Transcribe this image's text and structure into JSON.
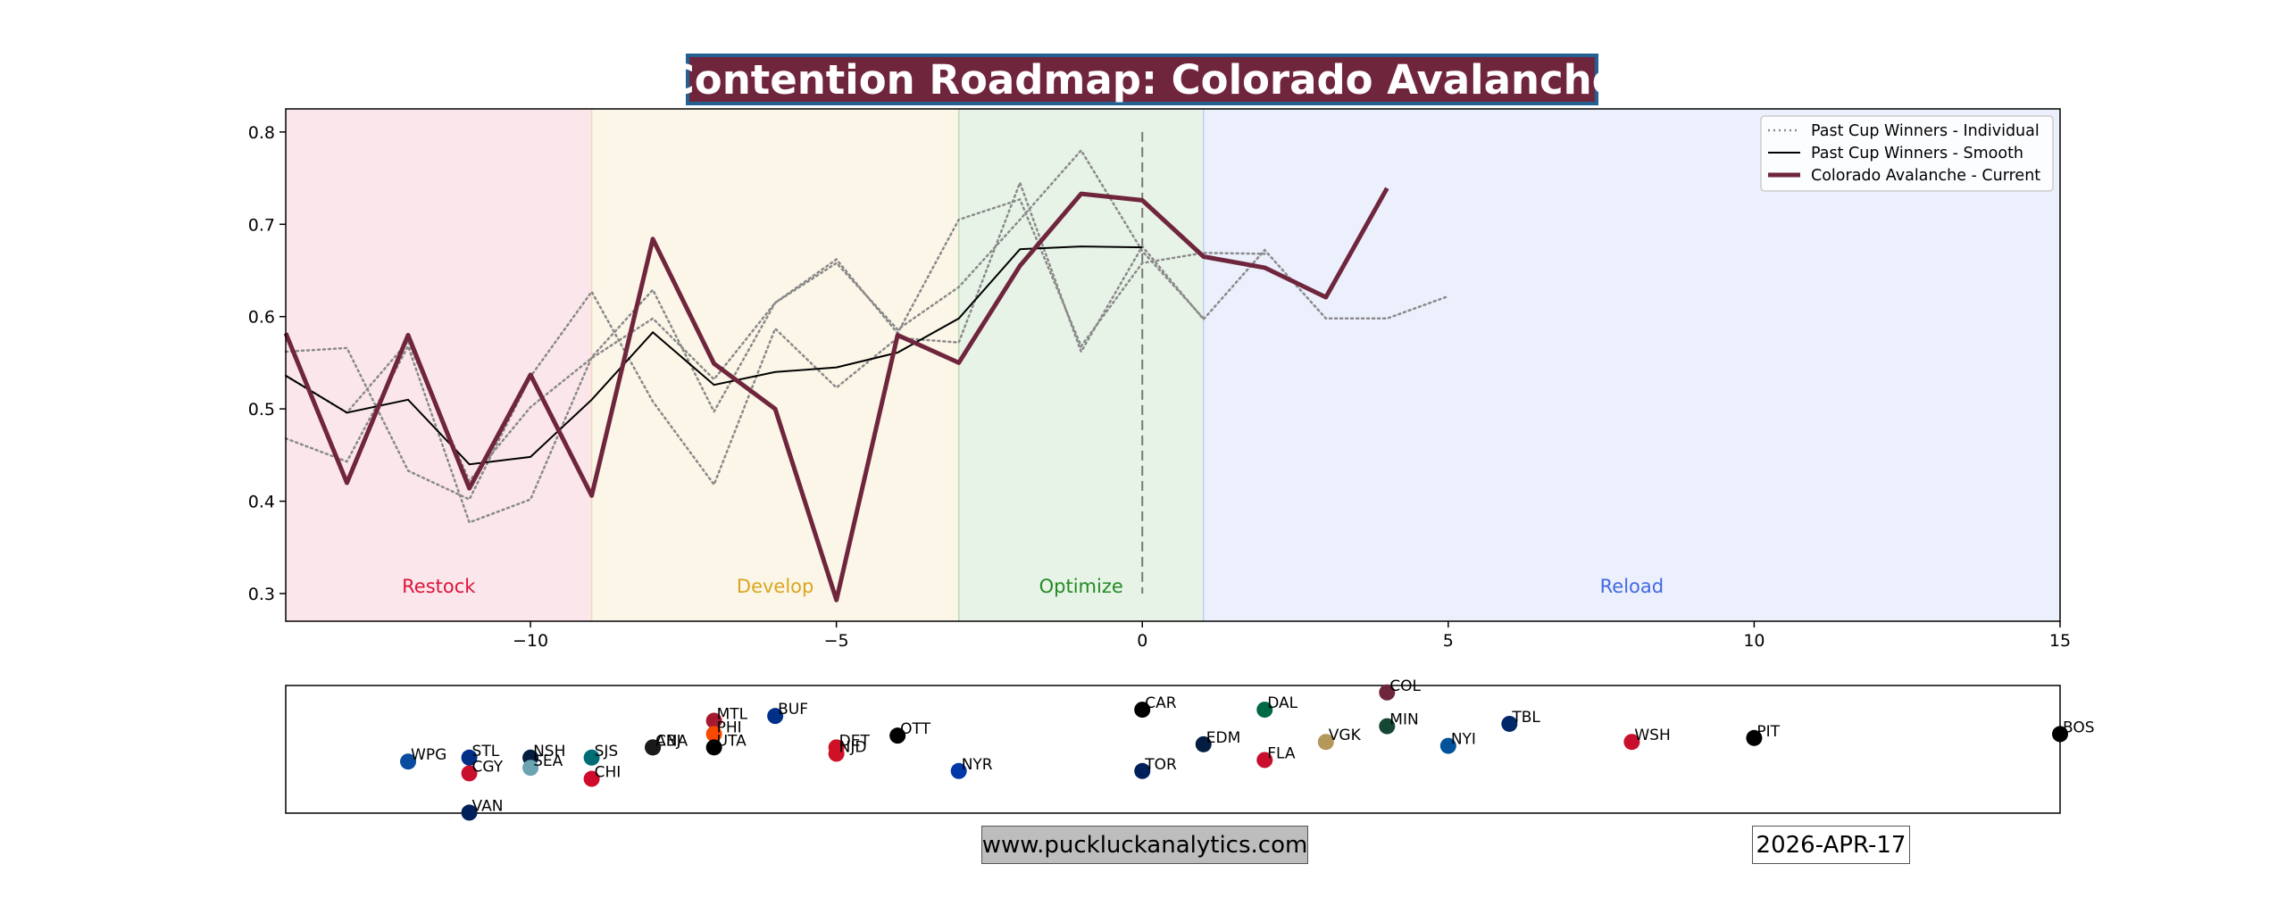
{
  "title": "Contention Roadmap: Colorado Avalanche",
  "footer": {
    "website": "www.puckluckanalytics.com",
    "date": "2026-APR-17"
  },
  "colors": {
    "restock": "#dc143c",
    "develop": "#daa520",
    "optimize": "#228b22",
    "reload": "#4169e1",
    "current": "#6f263d",
    "title_bg": "#6f263d",
    "title_border": "#236192"
  },
  "chart_data": [
    {
      "type": "line",
      "title": "Contention Roadmap: Colorado Avalanche",
      "xlim": [
        -14,
        15
      ],
      "ylim": [
        0.27,
        0.825
      ],
      "x_ticks": [
        -10,
        -5,
        0,
        5,
        10,
        15
      ],
      "x_tick_labels": [
        "−10",
        "−5",
        "0",
        "5",
        "10",
        "15"
      ],
      "y_ticks": [
        0.3,
        0.4,
        0.5,
        0.6,
        0.7,
        0.8
      ],
      "y_tick_labels": [
        "0.3",
        "0.4",
        "0.5",
        "0.6",
        "0.7",
        "0.8"
      ],
      "grid": false,
      "legend_position": "top-right",
      "phases": [
        {
          "label": "Restock",
          "start": -14,
          "end": -9,
          "color": "#dc143c"
        },
        {
          "label": "Develop",
          "start": -9,
          "end": -3,
          "color": "#daa520"
        },
        {
          "label": "Optimize",
          "start": -3,
          "end": 1,
          "color": "#228b22"
        },
        {
          "label": "Reload",
          "start": 1,
          "end": 15,
          "color": "#4169e1"
        }
      ],
      "reference_line_x": 0,
      "legend": [
        {
          "label": "Past Cup Winners - Individual",
          "style": "dotted"
        },
        {
          "label": "Past Cup Winners - Smooth",
          "style": "solid"
        },
        {
          "label": "Colorado Avalanche - Current",
          "style": "thick"
        }
      ],
      "individual_series": [
        {
          "x": [
            -14,
            -13,
            -12,
            -11,
            -10,
            -9,
            -8,
            -7,
            -6,
            -5,
            -4,
            -3,
            -2,
            -1,
            0,
            1,
            2,
            3,
            4,
            5
          ],
          "y": [
            0.562,
            0.566,
            0.433,
            0.402,
            0.535,
            0.627,
            0.508,
            0.418,
            0.587,
            0.523,
            0.577,
            0.572,
            0.745,
            0.562,
            0.676,
            0.597,
            0.672,
            0.598,
            0.598,
            0.622
          ]
        },
        {
          "x": [
            -14,
            -13,
            -12,
            -11,
            -10,
            -9,
            -8,
            -7,
            -6,
            -5,
            -4,
            -3,
            -2,
            -1,
            0,
            1,
            2
          ],
          "y": [
            0.468,
            0.443,
            0.568,
            0.377,
            0.402,
            0.556,
            0.629,
            0.497,
            0.615,
            0.662,
            0.582,
            0.705,
            0.727,
            0.568,
            0.658,
            0.669,
            0.668
          ]
        },
        {
          "x": [
            -14,
            -13,
            -12,
            -11,
            -10,
            -9,
            -8,
            -7,
            -6,
            -5,
            -4,
            -3,
            -2,
            -1,
            0,
            1
          ],
          "y": [
            0.536,
            0.496,
            0.573,
            0.422,
            0.502,
            0.555,
            0.598,
            0.532,
            0.615,
            0.658,
            0.586,
            0.632,
            0.705,
            0.78,
            0.671,
            0.598
          ]
        }
      ],
      "smooth_series": {
        "x": [
          -14,
          -13,
          -12,
          -11,
          -10,
          -9,
          -8,
          -7,
          -6,
          -5,
          -4,
          -3,
          -2,
          -1,
          0
        ],
        "y": [
          0.536,
          0.496,
          0.51,
          0.44,
          0.448,
          0.51,
          0.583,
          0.526,
          0.54,
          0.545,
          0.561,
          0.598,
          0.673,
          0.676,
          0.675
        ]
      },
      "current_series": {
        "name": "Colorado Avalanche - Current",
        "x": [
          -14,
          -13,
          -12,
          -11,
          -10,
          -9,
          -8,
          -7,
          -6,
          -5,
          -4,
          -3,
          -2,
          -1,
          0,
          1,
          2,
          3,
          4
        ],
        "y": [
          0.582,
          0.42,
          0.58,
          0.414,
          0.537,
          0.406,
          0.684,
          0.549,
          0.5,
          0.293,
          0.58,
          0.55,
          0.655,
          0.733,
          0.726,
          0.665,
          0.653,
          0.621,
          0.739
        ]
      }
    },
    {
      "type": "scatter",
      "xlim": [
        -14,
        15
      ],
      "note": "team markers by x value",
      "points": [
        {
          "team": "WPG",
          "x": -12,
          "y": 0.1,
          "color": "#0a4ca0"
        },
        {
          "team": "STL",
          "x": -11,
          "y": 0.15,
          "color": "#002f87"
        },
        {
          "team": "CGY",
          "x": -11,
          "y": -0.05,
          "color": "#c8102e"
        },
        {
          "team": "VAN",
          "x": -11,
          "y": -0.55,
          "color": "#00205b"
        },
        {
          "team": "NSH",
          "x": -10,
          "y": 0.15,
          "color": "#041e42"
        },
        {
          "team": "SEA",
          "x": -10,
          "y": 0.02,
          "color": "#6ba3b0"
        },
        {
          "team": "SJS",
          "x": -9,
          "y": 0.15,
          "color": "#006d75"
        },
        {
          "team": "CHI",
          "x": -9,
          "y": -0.12,
          "color": "#cf0a2c"
        },
        {
          "team": "CBJ",
          "x": -8,
          "y": 0.28,
          "color": "#002654"
        },
        {
          "team": "ANA",
          "x": -8,
          "y": 0.28,
          "color": "#1a1a1a"
        },
        {
          "team": "MTL",
          "x": -7,
          "y": 0.62,
          "color": "#a6192e"
        },
        {
          "team": "PHI",
          "x": -7,
          "y": 0.45,
          "color": "#f74902"
        },
        {
          "team": "UTA",
          "x": -7,
          "y": 0.28,
          "color": "#000000"
        },
        {
          "team": "BUF",
          "x": -6,
          "y": 0.68,
          "color": "#003087"
        },
        {
          "team": "DET",
          "x": -5,
          "y": 0.28,
          "color": "#ce1126"
        },
        {
          "team": "NJD",
          "x": -5,
          "y": 0.2,
          "color": "#ce1126"
        },
        {
          "team": "OTT",
          "x": -4,
          "y": 0.43,
          "color": "#000000"
        },
        {
          "team": "NYR",
          "x": -3,
          "y": -0.02,
          "color": "#0038a8"
        },
        {
          "team": "CAR",
          "x": 0,
          "y": 0.76,
          "color": "#000000"
        },
        {
          "team": "TOR",
          "x": 0,
          "y": -0.02,
          "color": "#00205b"
        },
        {
          "team": "EDM",
          "x": 1,
          "y": 0.32,
          "color": "#041e42"
        },
        {
          "team": "DAL",
          "x": 2,
          "y": 0.76,
          "color": "#006847"
        },
        {
          "team": "FLA",
          "x": 2,
          "y": 0.12,
          "color": "#c8102e"
        },
        {
          "team": "VGK",
          "x": 3,
          "y": 0.35,
          "color": "#b4975a"
        },
        {
          "team": "COL",
          "x": 4,
          "y": 0.98,
          "color": "#6f263d"
        },
        {
          "team": "MIN",
          "x": 4,
          "y": 0.55,
          "color": "#154734"
        },
        {
          "team": "NYI",
          "x": 5,
          "y": 0.3,
          "color": "#00539b"
        },
        {
          "team": "TBL",
          "x": 6,
          "y": 0.58,
          "color": "#002868"
        },
        {
          "team": "WSH",
          "x": 8,
          "y": 0.35,
          "color": "#c8102e"
        },
        {
          "team": "PIT",
          "x": 10,
          "y": 0.4,
          "color": "#000000"
        },
        {
          "team": "BOS",
          "x": 15,
          "y": 0.45,
          "color": "#000000"
        }
      ]
    }
  ]
}
